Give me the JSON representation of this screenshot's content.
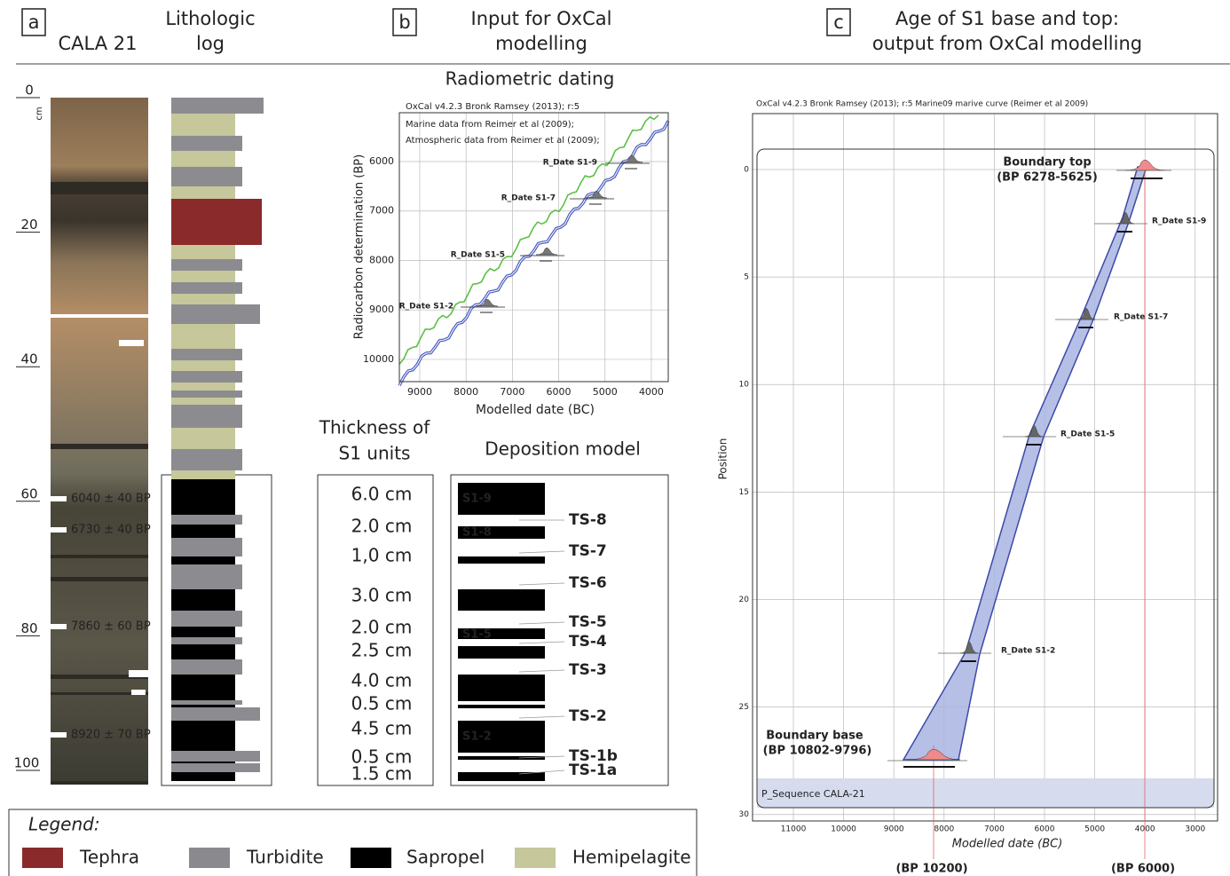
{
  "panels": {
    "a": {
      "letter": "a",
      "core_title": "CALA 21",
      "log_title": [
        "Lithologic",
        "log"
      ],
      "depth_unit": "cm",
      "depth_ticks": [
        0,
        20,
        40,
        60,
        80,
        100
      ],
      "dates": [
        "6040 ± 40 BP",
        "6730 ± 40 BP",
        "7860 ± 60 BP",
        "8920 ± 70 BP"
      ]
    },
    "b": {
      "letter": "b",
      "title": [
        "Input for OxCal",
        "modelling"
      ],
      "radiometric": {
        "title": "Radiometric dating",
        "header": "OxCal v4.2.3 Bronk Ramsey (2013); r:5",
        "legend": [
          "Marine data from Reimer et al (2009);",
          "Atmospheric data from Reimer et al (2009);"
        ],
        "xlabel": "Modelled date (BC)",
        "ylabel": "Radiocarbon determination (BP)",
        "xlim": [
          9440,
          3635
        ],
        "ylim": [
          10450,
          5013
        ],
        "xticks": [
          9000,
          8000,
          7000,
          6000,
          5000,
          4000
        ],
        "yticks": [
          6000,
          7000,
          8000,
          9000,
          10000
        ],
        "labels": [
          "R_Date S1-9",
          "R_Date S1-7",
          "R_Date S1-5",
          "R_Date S1-2"
        ]
      },
      "thickness": {
        "title": [
          "Thickness of",
          "S1 units"
        ],
        "values": [
          "6.0 cm",
          "2.0 cm",
          "1,0 cm",
          "3.0 cm",
          "2.0 cm",
          "2.5 cm",
          "4.0 cm",
          "0.5 cm",
          "4.5 cm",
          "0.5 cm",
          "1.5 cm"
        ]
      },
      "deposition": {
        "title": "Deposition model",
        "units": [
          "S1-9",
          "S1-8",
          "S1-5",
          "S1-2"
        ],
        "surfaces": [
          "TS-8",
          "TS-7",
          "TS-6",
          "TS-5",
          "TS-4",
          "TS-3",
          "TS-2",
          "TS-1b",
          "TS-1a"
        ]
      }
    },
    "c": {
      "letter": "c",
      "title": [
        "Age of S1 base and top:",
        "output from OxCal modelling"
      ],
      "header": "OxCal v4.2.3 Bronk Ramsey (2013); r:5 Marine09 marive curve (Reimer et al 2009)",
      "xlabel": "Modelled date (BC)",
      "ylabel": "Position",
      "xlim": [
        11813,
        2555
      ],
      "ylim": [
        -2.6,
        30.3
      ],
      "xticks": [
        11000,
        10000,
        9000,
        8000,
        7000,
        6000,
        5000,
        4000,
        3000
      ],
      "yticks": [
        0,
        5,
        10,
        15,
        20,
        25,
        30
      ],
      "boundary_top": [
        "Boundary top",
        "(BP 6278-5625)"
      ],
      "boundary_base": [
        "Boundary base",
        "(BP 10802-9796)"
      ],
      "labels": [
        "R_Date S1-9",
        "R_Date S1-7",
        "R_Date S1-5",
        "R_Date S1-2"
      ],
      "sequence": "P_Sequence CALA-21",
      "bp_marks": [
        "(BP 10200)",
        "(BP 6000)"
      ]
    }
  },
  "legend": {
    "title": "Legend:",
    "items": [
      "Tephra",
      "Turbidite",
      "Sapropel",
      "Hemipelagite"
    ]
  }
}
